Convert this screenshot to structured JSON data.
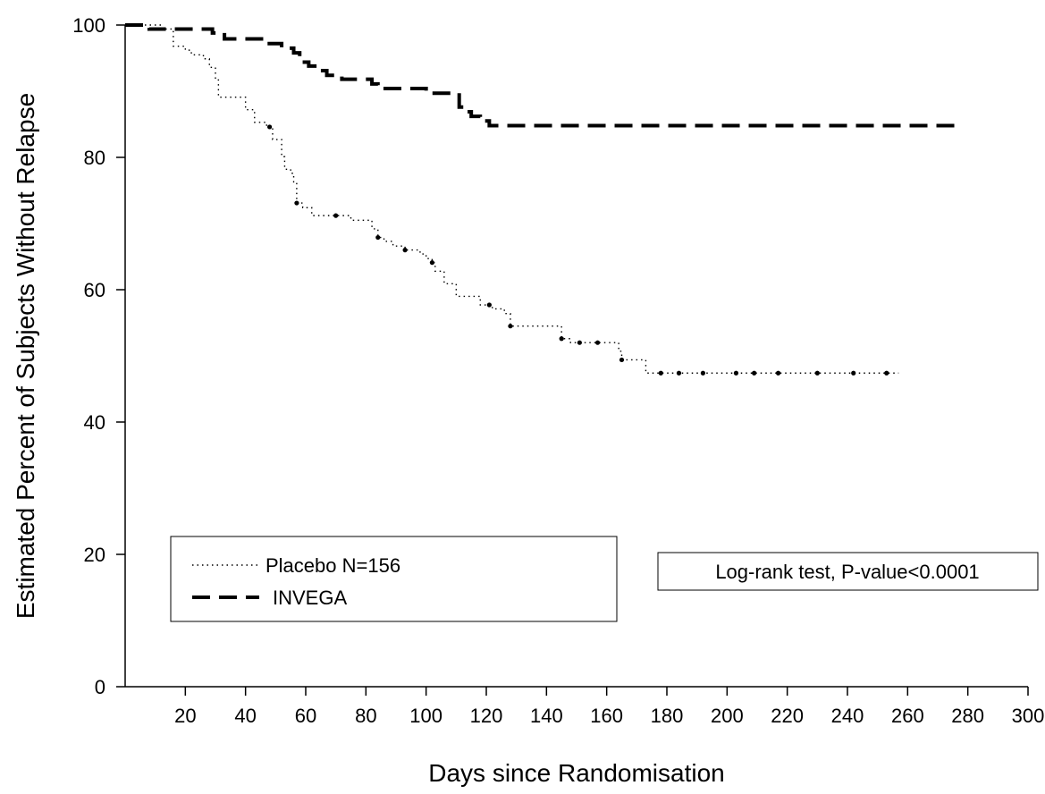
{
  "chart_data": {
    "type": "line",
    "title": "",
    "xlabel": "Days since Randomisation",
    "ylabel": "Estimated Percent of Subjects Without Relapse",
    "xlim": [
      0,
      300
    ],
    "ylim": [
      0,
      100
    ],
    "xticks": [
      20,
      40,
      60,
      80,
      100,
      120,
      140,
      160,
      180,
      200,
      220,
      240,
      260,
      280,
      300
    ],
    "yticks": [
      0,
      20,
      40,
      60,
      80,
      100
    ],
    "grid": false,
    "legend_position": "bottom-left",
    "series": [
      {
        "name": "Placebo N=156",
        "line_style": "dotted",
        "color": "#000000",
        "points": [
          [
            0,
            100
          ],
          [
            10,
            100
          ],
          [
            12,
            99.4
          ],
          [
            16,
            96.8
          ],
          [
            20,
            96.2
          ],
          [
            22,
            95.5
          ],
          [
            26,
            94.9
          ],
          [
            28,
            93.6
          ],
          [
            30,
            91.7
          ],
          [
            31,
            89.1
          ],
          [
            40,
            87.2
          ],
          [
            43,
            85.3
          ],
          [
            47,
            84.6
          ],
          [
            49,
            82.7
          ],
          [
            52,
            80.1
          ],
          [
            53,
            78.2
          ],
          [
            55,
            77.6
          ],
          [
            56,
            76.3
          ],
          [
            57,
            73.1
          ],
          [
            59,
            72.4
          ],
          [
            62,
            71.2
          ],
          [
            70,
            71.2
          ],
          [
            75,
            70.5
          ],
          [
            79,
            70.5
          ],
          [
            82,
            69.2
          ],
          [
            84,
            67.9
          ],
          [
            86,
            67.3
          ],
          [
            89,
            66.6
          ],
          [
            93,
            66
          ],
          [
            96,
            66
          ],
          [
            98,
            65.4
          ],
          [
            100,
            64.7
          ],
          [
            102,
            64.1
          ],
          [
            103,
            62.8
          ],
          [
            106,
            60.9
          ],
          [
            110,
            59
          ],
          [
            118,
            57.7
          ],
          [
            122,
            57.1
          ],
          [
            126,
            56.4
          ],
          [
            128,
            54.5
          ],
          [
            132,
            54.5
          ],
          [
            143,
            54.5
          ],
          [
            145,
            52.6
          ],
          [
            148,
            52
          ],
          [
            162,
            52
          ],
          [
            164,
            50.7
          ],
          [
            165,
            49.4
          ],
          [
            171,
            49.4
          ],
          [
            173,
            47.4
          ],
          [
            257,
            47.4
          ]
        ],
        "markers_x": [
          48,
          57,
          70,
          84,
          93,
          102,
          121,
          128,
          145,
          151,
          157,
          165,
          178,
          184,
          192,
          203,
          209,
          217,
          230,
          242,
          253
        ]
      },
      {
        "name": "INVEGA",
        "line_style": "dashed",
        "color": "#000000",
        "points": [
          [
            0,
            100
          ],
          [
            6,
            100
          ],
          [
            8,
            99.4
          ],
          [
            28,
            99.4
          ],
          [
            29,
            98.8
          ],
          [
            33,
            97.9
          ],
          [
            45,
            97.9
          ],
          [
            47,
            97.2
          ],
          [
            52,
            96.5
          ],
          [
            56,
            95.8
          ],
          [
            58,
            94.4
          ],
          [
            61,
            93.8
          ],
          [
            64,
            93.1
          ],
          [
            67,
            92.4
          ],
          [
            72,
            91.8
          ],
          [
            82,
            91.1
          ],
          [
            84,
            90.4
          ],
          [
            100,
            89.7
          ],
          [
            108,
            89.7
          ],
          [
            111,
            87.6
          ],
          [
            113,
            86.9
          ],
          [
            115,
            86.2
          ],
          [
            118,
            85.5
          ],
          [
            121,
            84.8
          ],
          [
            277,
            84.8
          ]
        ]
      }
    ],
    "annotations": [
      "Log-rank test, P-value<0.0001"
    ]
  }
}
